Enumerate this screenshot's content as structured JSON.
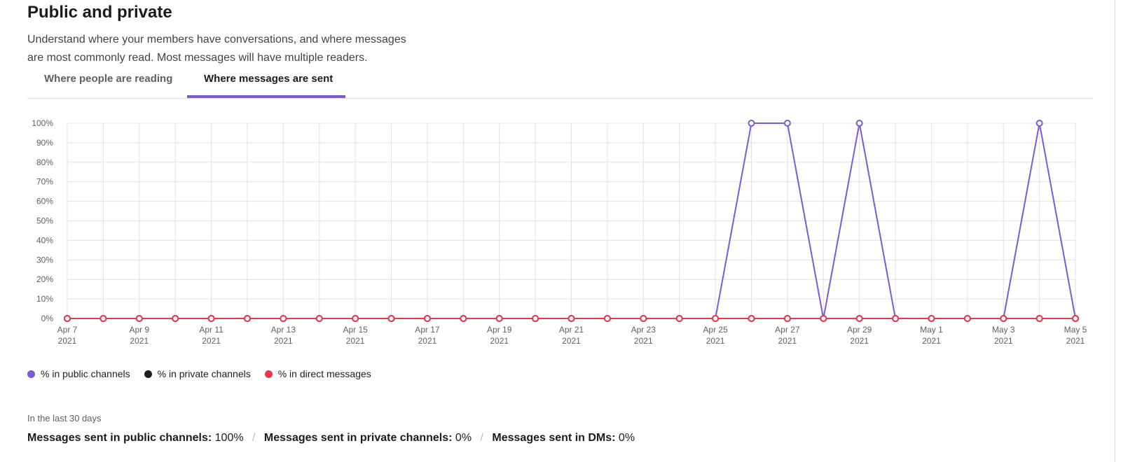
{
  "header": {
    "title": "Public and private",
    "description_line1": "Understand where your members have conversations, and where messages",
    "description_line2": "are most commonly read. Most messages will have multiple readers."
  },
  "tabs": [
    {
      "label": "Where people are reading",
      "active": false
    },
    {
      "label": "Where messages are sent",
      "active": true
    }
  ],
  "legend": [
    {
      "label": "% in public channels",
      "color": "#7c5ad6"
    },
    {
      "label": "% in private channels",
      "color": "#1d1c1d"
    },
    {
      "label": "% in direct messages",
      "color": "#e8384f"
    }
  ],
  "footer": {
    "period": "In the last 30 days",
    "public_label": "Messages sent in public channels:",
    "public_value": "100%",
    "private_label": "Messages sent in private channels:",
    "private_value": "0%",
    "dms_label": "Messages sent in DMs:",
    "dms_value": "0%"
  },
  "chart_data": {
    "type": "line",
    "x": [
      "Apr 7 2021",
      "Apr 8 2021",
      "Apr 9 2021",
      "Apr 10 2021",
      "Apr 11 2021",
      "Apr 12 2021",
      "Apr 13 2021",
      "Apr 14 2021",
      "Apr 15 2021",
      "Apr 16 2021",
      "Apr 17 2021",
      "Apr 18 2021",
      "Apr 19 2021",
      "Apr 20 2021",
      "Apr 21 2021",
      "Apr 22 2021",
      "Apr 23 2021",
      "Apr 24 2021",
      "Apr 25 2021",
      "Apr 26 2021",
      "Apr 27 2021",
      "Apr 28 2021",
      "Apr 29 2021",
      "Apr 30 2021",
      "May 1 2021",
      "May 2 2021",
      "May 3 2021",
      "May 4 2021",
      "May 5 2021"
    ],
    "tick_labels": [
      {
        "index": 0,
        "line1": "Apr 7",
        "line2": "2021"
      },
      {
        "index": 2,
        "line1": "Apr 9",
        "line2": "2021"
      },
      {
        "index": 4,
        "line1": "Apr 11",
        "line2": "2021"
      },
      {
        "index": 6,
        "line1": "Apr 13",
        "line2": "2021"
      },
      {
        "index": 8,
        "line1": "Apr 15",
        "line2": "2021"
      },
      {
        "index": 10,
        "line1": "Apr 17",
        "line2": "2021"
      },
      {
        "index": 12,
        "line1": "Apr 19",
        "line2": "2021"
      },
      {
        "index": 14,
        "line1": "Apr 21",
        "line2": "2021"
      },
      {
        "index": 16,
        "line1": "Apr 23",
        "line2": "2021"
      },
      {
        "index": 18,
        "line1": "Apr 25",
        "line2": "2021"
      },
      {
        "index": 20,
        "line1": "Apr 27",
        "line2": "2021"
      },
      {
        "index": 22,
        "line1": "Apr 29",
        "line2": "2021"
      },
      {
        "index": 24,
        "line1": "May 1",
        "line2": "2021"
      },
      {
        "index": 26,
        "line1": "May 3",
        "line2": "2021"
      },
      {
        "index": 28,
        "line1": "May 5",
        "line2": "2021"
      }
    ],
    "y_ticks": [
      "0%",
      "10%",
      "20%",
      "30%",
      "40%",
      "50%",
      "60%",
      "70%",
      "80%",
      "90%",
      "100%"
    ],
    "ylim": [
      0,
      100
    ],
    "grid": true,
    "series": [
      {
        "name": "% in public channels",
        "color": "#7c5ad6",
        "values": [
          0,
          0,
          0,
          0,
          0,
          0,
          0,
          0,
          0,
          0,
          0,
          0,
          0,
          0,
          0,
          0,
          0,
          0,
          0,
          100,
          100,
          0,
          100,
          0,
          0,
          0,
          0,
          100,
          0
        ]
      },
      {
        "name": "% in private channels",
        "color": "#1d1c1d",
        "values": [
          0,
          0,
          0,
          0,
          0,
          0,
          0,
          0,
          0,
          0,
          0,
          0,
          0,
          0,
          0,
          0,
          0,
          0,
          0,
          0,
          0,
          0,
          0,
          0,
          0,
          0,
          0,
          0,
          0
        ]
      },
      {
        "name": "% in direct messages",
        "color": "#e8384f",
        "values": [
          0,
          0,
          0,
          0,
          0,
          0,
          0,
          0,
          0,
          0,
          0,
          0,
          0,
          0,
          0,
          0,
          0,
          0,
          0,
          0,
          0,
          0,
          0,
          0,
          0,
          0,
          0,
          0,
          0
        ]
      }
    ]
  }
}
